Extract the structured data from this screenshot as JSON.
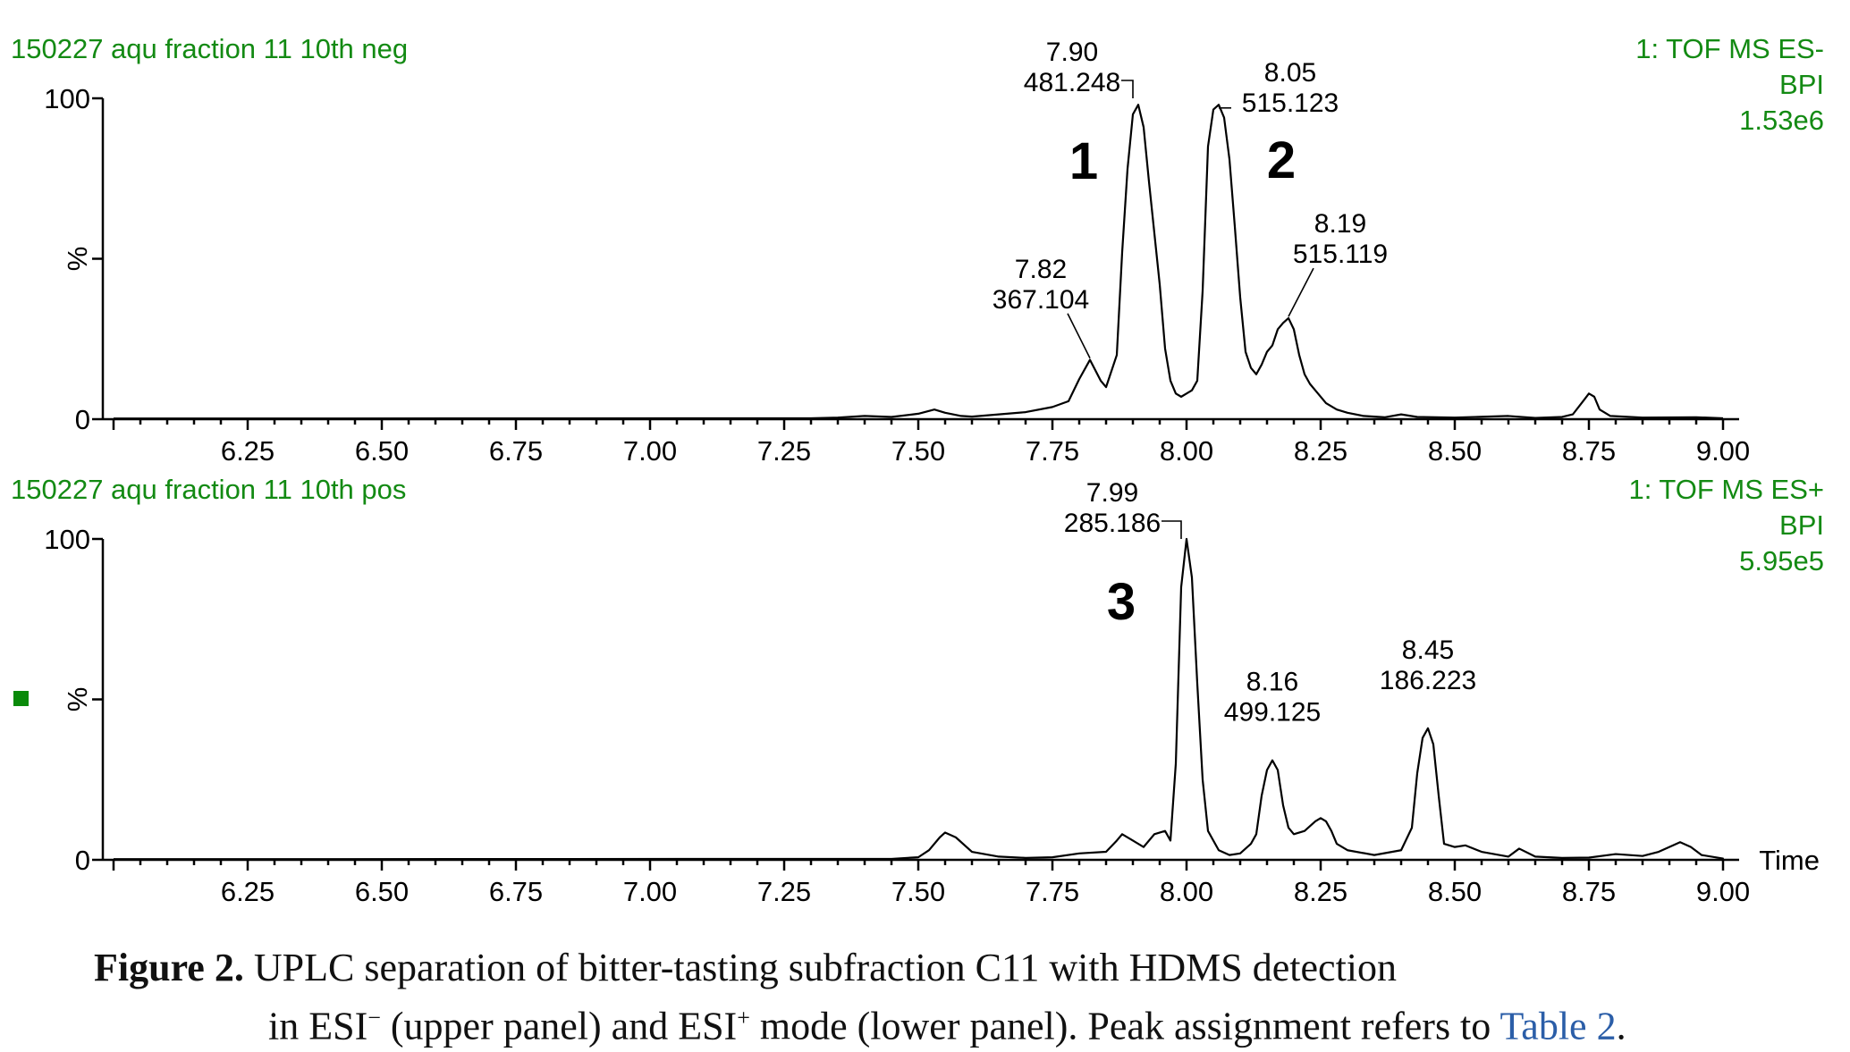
{
  "chart_data": [
    {
      "type": "line",
      "panel": "upper",
      "title": "150227 aqu fraction 11 10th neg",
      "detector": "1: TOF MS ES-",
      "trace": "BPI",
      "intensity": "1.53e6",
      "xlabel": "",
      "ylabel": "%",
      "xlim": [
        5.98,
        9.03
      ],
      "ylim": [
        0,
        100
      ],
      "xticks": [
        "6.25",
        "6.50",
        "6.75",
        "7.00",
        "7.25",
        "7.50",
        "7.75",
        "8.00",
        "8.25",
        "8.50",
        "8.75",
        "9.00"
      ],
      "yticks": [
        "0",
        "%",
        "100"
      ],
      "x": [
        7.3,
        7.35,
        7.4,
        7.45,
        7.5,
        7.53,
        7.55,
        7.58,
        7.6,
        7.65,
        7.7,
        7.75,
        7.78,
        7.8,
        7.82,
        7.84,
        7.85,
        7.87,
        7.88,
        7.89,
        7.9,
        7.91,
        7.92,
        7.93,
        7.95,
        7.96,
        7.97,
        7.98,
        7.99,
        8.0,
        8.01,
        8.02,
        8.03,
        8.04,
        8.05,
        8.06,
        8.07,
        8.08,
        8.09,
        8.1,
        8.11,
        8.12,
        8.13,
        8.14,
        8.15,
        8.16,
        8.17,
        8.18,
        8.19,
        8.2,
        8.21,
        8.22,
        8.23,
        8.24,
        8.26,
        8.28,
        8.3,
        8.33,
        8.37,
        8.4,
        8.43,
        8.5,
        8.6,
        8.65,
        8.7,
        8.72,
        8.74,
        8.75,
        8.76,
        8.77,
        8.79,
        8.85,
        8.95,
        9.0
      ],
      "values": [
        0.3,
        0.5,
        1.0,
        0.7,
        1.7,
        3.0,
        2.0,
        1.0,
        0.8,
        1.5,
        2.2,
        3.8,
        5.6,
        12.5,
        18.5,
        12.0,
        10.0,
        20.0,
        52.0,
        78.0,
        95.0,
        98.0,
        91.0,
        74.0,
        42.0,
        22.0,
        12.0,
        8.0,
        7.0,
        8.0,
        9.0,
        12.0,
        40.0,
        85.0,
        96.5,
        98.0,
        94.0,
        81.0,
        60.0,
        38.0,
        21.0,
        16.0,
        14.0,
        17.0,
        21.0,
        23.0,
        28.0,
        30.0,
        31.5,
        28.0,
        20.0,
        14.0,
        11.0,
        9.0,
        5.0,
        3.0,
        2.0,
        1.0,
        0.6,
        1.5,
        0.7,
        0.5,
        1.0,
        0.4,
        0.7,
        1.5,
        5.8,
        8.0,
        7.0,
        3.0,
        1.0,
        0.5,
        0.6,
        0.3
      ],
      "annotations": [
        {
          "rt": "7.90",
          "mz": "481.248",
          "peak": "1",
          "x": 7.9,
          "y": 100
        },
        {
          "rt": "8.05",
          "mz": "515.123",
          "peak": "2",
          "x": 8.06,
          "y": 97
        },
        {
          "rt": "7.82",
          "mz": "367.104",
          "peak": "",
          "x": 7.82,
          "y": 19
        },
        {
          "rt": "8.19",
          "mz": "515.119",
          "peak": "",
          "x": 8.19,
          "y": 32
        }
      ]
    },
    {
      "type": "line",
      "panel": "lower",
      "title": "150227 aqu fraction 11 10th pos",
      "detector": "1: TOF MS ES+",
      "trace": "BPI",
      "intensity": "5.95e5",
      "xlabel": "Time",
      "ylabel": "%",
      "xlim": [
        5.98,
        9.03
      ],
      "ylim": [
        0,
        100
      ],
      "xticks": [
        "6.25",
        "6.50",
        "6.75",
        "7.00",
        "7.25",
        "7.50",
        "7.75",
        "8.00",
        "8.25",
        "8.50",
        "8.75",
        "9.00"
      ],
      "yticks": [
        "0",
        "%",
        "100"
      ],
      "x": [
        7.45,
        7.5,
        7.52,
        7.54,
        7.55,
        7.57,
        7.6,
        7.65,
        7.7,
        7.75,
        7.8,
        7.85,
        7.87,
        7.88,
        7.9,
        7.92,
        7.94,
        7.96,
        7.97,
        7.98,
        7.99,
        8.0,
        8.01,
        8.02,
        8.03,
        8.04,
        8.06,
        8.08,
        8.1,
        8.12,
        8.13,
        8.14,
        8.15,
        8.16,
        8.17,
        8.18,
        8.19,
        8.2,
        8.22,
        8.24,
        8.25,
        8.26,
        8.27,
        8.28,
        8.3,
        8.35,
        8.4,
        8.42,
        8.43,
        8.44,
        8.45,
        8.46,
        8.47,
        8.48,
        8.5,
        8.52,
        8.55,
        8.6,
        8.62,
        8.65,
        8.7,
        8.75,
        8.8,
        8.85,
        8.88,
        8.9,
        8.92,
        8.94,
        8.96,
        9.0
      ],
      "values": [
        0.3,
        0.8,
        3.0,
        7.0,
        8.5,
        7.0,
        2.5,
        1.0,
        0.6,
        0.8,
        2.0,
        2.5,
        6.0,
        8.0,
        6.0,
        4.0,
        8.0,
        9.0,
        6.0,
        30.0,
        85.0,
        100.0,
        88.0,
        55.0,
        25.0,
        9.0,
        3.0,
        1.5,
        2.0,
        5.0,
        8.0,
        20.0,
        28.0,
        31.0,
        28.0,
        17.0,
        10.0,
        8.0,
        9.0,
        12.0,
        13.0,
        12.0,
        9.0,
        5.0,
        3.0,
        1.5,
        3.0,
        10.0,
        27.0,
        38.0,
        41.0,
        36.0,
        20.0,
        5.0,
        4.0,
        4.5,
        2.5,
        1.0,
        3.5,
        1.0,
        0.6,
        0.7,
        1.8,
        1.2,
        2.5,
        4.0,
        5.5,
        4.0,
        1.5,
        0.4
      ],
      "annotations": [
        {
          "rt": "7.99",
          "mz": "285.186",
          "peak": "3",
          "x": 7.99,
          "y": 100
        },
        {
          "rt": "8.16",
          "mz": "499.125",
          "peak": "",
          "x": 8.16,
          "y": 31
        },
        {
          "rt": "8.45",
          "mz": "186.223",
          "peak": "",
          "x": 8.45,
          "y": 41
        }
      ]
    }
  ],
  "caption": {
    "figure_label": "Figure 2.",
    "line1_text": "UPLC separation of bitter-tasting subfraction C11 with HDMS detection",
    "line2_a": "in ESI",
    "line2_sup1": "−",
    "line2_b": " (upper panel) and ESI",
    "line2_sup2": "+",
    "line2_c": " mode (lower panel).   Peak assignment refers to ",
    "link": "Table 2",
    "end": "."
  },
  "colors": {
    "header": "#138a13",
    "link": "#2b5ea8",
    "marker": "#0a8a0a"
  }
}
